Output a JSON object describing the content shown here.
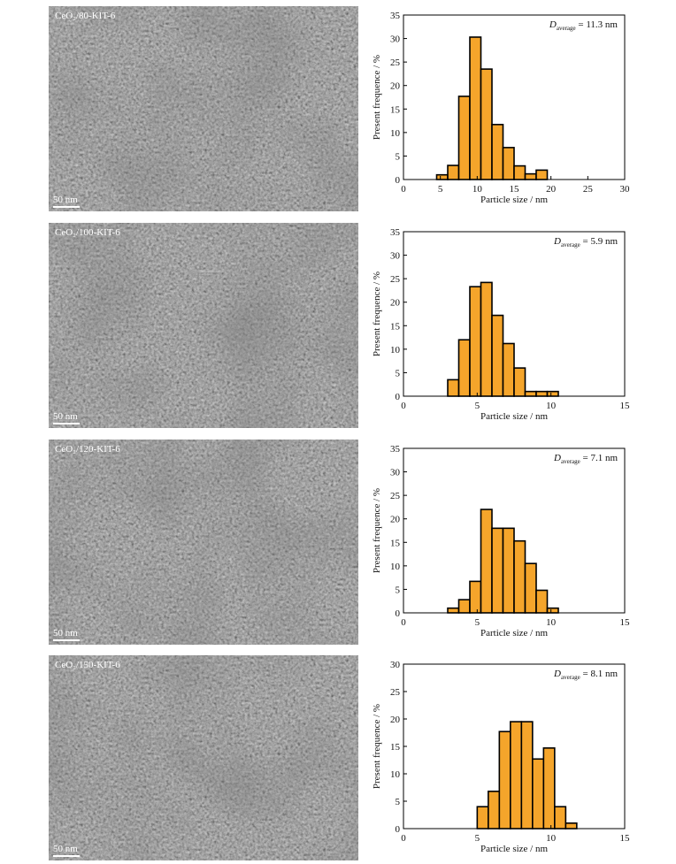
{
  "images": [
    {
      "label": "CeO₂/80-KIT-6",
      "scale_bar": "50 nm"
    },
    {
      "label": "CeO₂/100-KIT-6",
      "scale_bar": "50 nm"
    },
    {
      "label": "CeO₂/120-KIT-6",
      "scale_bar": "50 nm"
    },
    {
      "label": "CeO₂/150-KIT-6",
      "scale_bar": "50 nm"
    }
  ],
  "chart_data": [
    {
      "type": "histogram",
      "color": "#f5a52b",
      "bins": [
        4.5,
        6,
        7.5,
        9,
        10.5,
        12,
        13.5,
        15,
        16.5,
        18,
        19.5
      ],
      "values": [
        1,
        3,
        17.7,
        30.3,
        23.5,
        11.7,
        6.8,
        2.9,
        1.2,
        2.0
      ],
      "xlim": [
        0,
        30
      ],
      "xticks": [
        0,
        5,
        10,
        15,
        20,
        25,
        30
      ],
      "ylim": [
        0,
        35
      ],
      "yticks": [
        0,
        5,
        10,
        15,
        20,
        25,
        30,
        35
      ],
      "xlabel": "Particle size / nm",
      "ylabel": "Present frequence / %",
      "annotation": {
        "symbol": "D",
        "subscript": "average",
        "text": " = 11.3 nm"
      }
    },
    {
      "type": "histogram",
      "color": "#f5a52b",
      "bins": [
        3,
        3.75,
        4.5,
        5.25,
        6,
        6.75,
        7.5,
        8.25,
        9,
        9.75,
        10.5
      ],
      "values": [
        3.5,
        12,
        23.3,
        24.2,
        17.2,
        11.2,
        6,
        1,
        1,
        1
      ],
      "xlim": [
        0,
        15
      ],
      "xticks": [
        0,
        5,
        10,
        15
      ],
      "ylim": [
        0,
        35
      ],
      "yticks": [
        0,
        5,
        10,
        15,
        20,
        25,
        30,
        35
      ],
      "xlabel": "Particle size / nm",
      "ylabel": "Present frequence / %",
      "annotation": {
        "symbol": "D",
        "subscript": "average",
        "text": " = 5.9 nm"
      }
    },
    {
      "type": "histogram",
      "color": "#f5a52b",
      "bins": [
        3,
        3.75,
        4.5,
        5.25,
        6,
        6.75,
        7.5,
        8.25,
        9,
        9.75,
        10.5
      ],
      "values": [
        1,
        2.8,
        6.7,
        22,
        18,
        18,
        15.3,
        10.5,
        4.8,
        1
      ],
      "xlim": [
        0,
        15
      ],
      "xticks": [
        0,
        5,
        10,
        15
      ],
      "ylim": [
        0,
        35
      ],
      "yticks": [
        0,
        5,
        10,
        15,
        20,
        25,
        30,
        35
      ],
      "xlabel": "Particle size / nm",
      "ylabel": "Present frequence / %",
      "annotation": {
        "symbol": "D",
        "subscript": "average",
        "text": " = 7.1 nm"
      }
    },
    {
      "type": "histogram",
      "color": "#f5a52b",
      "bins": [
        5,
        5.75,
        6.5,
        7.25,
        8,
        8.75,
        9.5,
        10.25,
        11,
        11.75
      ],
      "values": [
        4,
        6.8,
        17.7,
        19.5,
        19.5,
        12.7,
        14.7,
        4,
        1
      ],
      "xlim": [
        0,
        15
      ],
      "xticks": [
        0,
        5,
        10,
        15
      ],
      "ylim": [
        0,
        30
      ],
      "yticks": [
        0,
        5,
        10,
        15,
        20,
        25,
        30
      ],
      "xlabel": "Particle size / nm",
      "ylabel": "Present frequence / %",
      "annotation": {
        "symbol": "D",
        "subscript": "average",
        "text": " = 8.1 nm"
      }
    }
  ]
}
